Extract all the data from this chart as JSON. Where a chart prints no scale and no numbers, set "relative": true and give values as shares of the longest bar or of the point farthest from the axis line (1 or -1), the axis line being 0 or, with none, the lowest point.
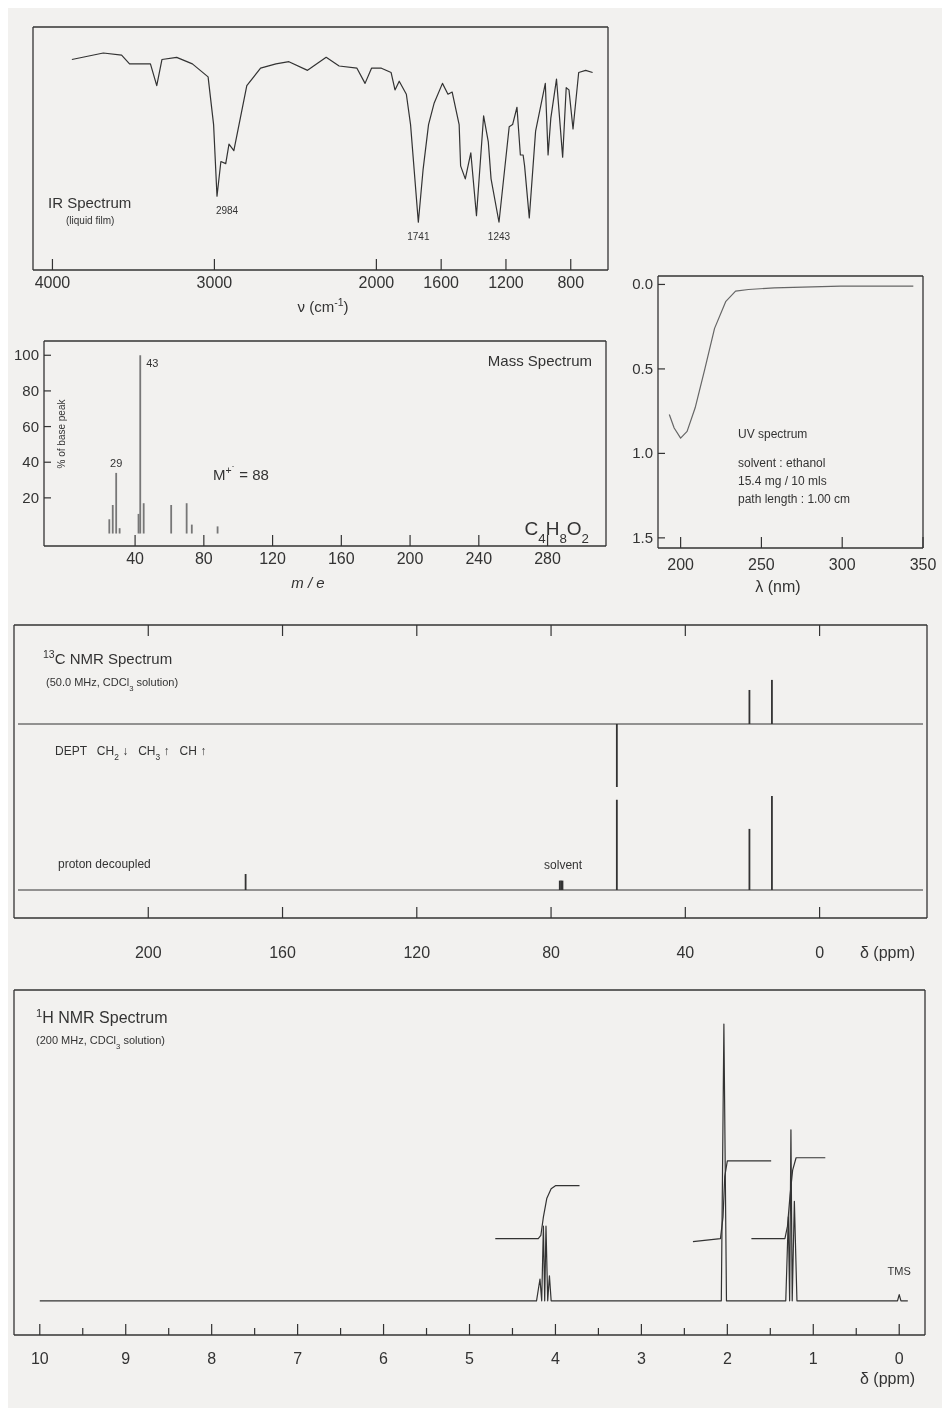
{
  "chart_data": [
    {
      "type": "line",
      "title": "IR Spectrum",
      "subtitle": "(liquid film)",
      "xlabel": "ν (cm$^{-1}$)",
      "relative": true,
      "xlim": [
        4120,
        570
      ],
      "xticks": [
        4000,
        3000,
        2000,
        1600,
        1200,
        800
      ],
      "x": [
        3880,
        3686,
        3573,
        3524,
        3460,
        3395,
        3356,
        3324,
        3233,
        3136,
        3039,
        3005,
        2984,
        2960,
        2930,
        2910,
        2880,
        2800,
        2715,
        2620,
        2540,
        2425,
        2310,
        2230,
        2120,
        2070,
        2030,
        1969,
        1909,
        1885,
        1859,
        1815,
        1789,
        1741,
        1712,
        1678,
        1643,
        1592,
        1558,
        1532,
        1489,
        1480,
        1451,
        1417,
        1382,
        1338,
        1309,
        1292,
        1243,
        1180,
        1159,
        1132,
        1111,
        1094,
        1085,
        1056,
        1017,
        957,
        940,
        923,
        888,
        850,
        828,
        811,
        786,
        751,
        708,
        665
      ],
      "series": [
        {
          "color": "#333333",
          "values": [
            0.97,
            1.0,
            0.99,
            0.95,
            0.95,
            0.95,
            0.85,
            0.97,
            0.98,
            0.95,
            0.89,
            0.67,
            0.34,
            0.5,
            0.49,
            0.58,
            0.55,
            0.85,
            0.93,
            0.95,
            0.96,
            0.92,
            0.98,
            0.94,
            0.93,
            0.86,
            0.93,
            0.93,
            0.91,
            0.83,
            0.87,
            0.81,
            0.67,
            0.22,
            0.46,
            0.67,
            0.77,
            0.86,
            0.81,
            0.82,
            0.67,
            0.48,
            0.42,
            0.54,
            0.25,
            0.71,
            0.59,
            0.42,
            0.22,
            0.66,
            0.67,
            0.75,
            0.53,
            0.53,
            0.48,
            0.24,
            0.64,
            0.86,
            0.53,
            0.7,
            0.88,
            0.52,
            0.84,
            0.83,
            0.65,
            0.91,
            0.92,
            0.91
          ]
        }
      ],
      "annotations": [
        {
          "text": "2984",
          "x": 2984,
          "y": 0.34
        },
        {
          "text": "1741",
          "x": 1741,
          "y": 0.22
        },
        {
          "text": "1243",
          "x": 1243,
          "y": 0.22
        }
      ]
    },
    {
      "type": "bar",
      "title": "Mass Spectrum",
      "xlabel": "m / e",
      "ylabel": "% of base peak",
      "xlim": [
        -13,
        314
      ],
      "ylim": [
        -7,
        108
      ],
      "xticks": [
        40,
        80,
        120,
        160,
        200,
        240,
        280
      ],
      "yticks": [
        20,
        40,
        60,
        80,
        100
      ],
      "x": [
        25,
        27,
        29,
        31,
        42,
        43,
        45,
        61,
        70,
        73,
        88
      ],
      "series": [
        {
          "color": "#777777",
          "values": [
            8,
            16,
            34,
            3,
            11,
            100,
            17,
            16,
            17,
            5,
            4
          ]
        }
      ],
      "annotations": [
        {
          "text": "43",
          "x": 43,
          "y": 100
        },
        {
          "text": "29",
          "x": 29,
          "y": 34
        },
        "M$^{+˙}$ = 88",
        "C$_{4}$H$_{8}$O$_{2}$"
      ]
    },
    {
      "type": "line",
      "title": "UV spectrum",
      "xlabel": "λ (nm)",
      "xlim": [
        186,
        350
      ],
      "ylim": [
        1.56,
        -0.05
      ],
      "xticks": [
        200,
        250,
        300,
        350
      ],
      "yticks": [
        {
          "value": 0,
          "label": "0.0"
        },
        0.5,
        {
          "value": 1,
          "label": "1.0"
        },
        1.5
      ],
      "x": [
        193,
        196,
        200,
        204,
        209,
        215,
        221,
        228,
        234,
        242,
        258,
        299,
        344
      ],
      "series": [
        {
          "color": "#666666",
          "values": [
            0.77,
            0.85,
            0.91,
            0.87,
            0.73,
            0.5,
            0.26,
            0.1,
            0.04,
            0.03,
            0.02,
            0.01,
            0.01
          ]
        }
      ],
      "annotations": [
        "solvent : ethanol",
        "15.4 mg / 10 mls",
        "path length : 1.00 cm"
      ]
    },
    {
      "type": "bar",
      "title": "$^{13}$C NMR Spectrum",
      "subtitle": "(50.0 MHz, CDCl$_{3}$ solution)",
      "relative": true,
      "tick_labels": false,
      "xlim": [
        240,
        -32
      ],
      "xticks": [
        200,
        160,
        120,
        80,
        40,
        0
      ],
      "x": [
        60.4,
        20.9,
        14.2
      ],
      "series": [
        {
          "color": "#333333",
          "values": [
            -1,
            0.54,
            0.7
          ]
        }
      ],
      "annotations": [
        "DEPT   CH$_{2}$ ↓   CH$_{3}$ ↑   CH ↑"
      ]
    },
    {
      "type": "bar",
      "xlabel": "δ (ppm)",
      "relative": true,
      "xlim": [
        240,
        -32
      ],
      "xticks": [
        200,
        160,
        120,
        80,
        40,
        0
      ],
      "x": [
        171.0,
        77.4,
        77.0,
        76.6,
        60.4,
        20.9,
        14.2
      ],
      "series": [
        {
          "color": "#333333",
          "values": [
            0.17,
            0.1,
            0.1,
            0.1,
            0.96,
            0.65,
            1.0
          ]
        }
      ],
      "annotations": [
        "proton decoupled",
        {
          "text": "solvent",
          "x": 77,
          "y": 0.1
        }
      ]
    },
    {
      "type": "line",
      "title": "$^{1}$H NMR Spectrum",
      "subtitle": "(200 MHz, CDCl$_{3}$ solution)",
      "xlabel": "δ (ppm)",
      "relative": true,
      "xlim": [
        10.3,
        -0.3
      ],
      "xticks": [
        10,
        {
          "value": 9.5,
          "label": null
        },
        9,
        {
          "value": 8.5,
          "label": null
        },
        8,
        {
          "value": 7.5,
          "label": null
        },
        7,
        {
          "value": 6.5,
          "label": null
        },
        6,
        {
          "value": 5.5,
          "label": null
        },
        5,
        {
          "value": 4.5,
          "label": null
        },
        4,
        {
          "value": 3.5,
          "label": null
        },
        3,
        {
          "value": 2.5,
          "label": null
        },
        2,
        {
          "value": 1.5,
          "label": null
        },
        1,
        {
          "value": 0.5,
          "label": null
        },
        0
      ],
      "series": [
        {
          "color": "#333333",
          "x": [
            10,
            4.22,
            4.18,
            4.16,
            4.14,
            4.125,
            4.11,
            4.09,
            4.07,
            4.05,
            2.07,
            2.04,
            2.01,
            1.32,
            1.29,
            1.275,
            1.26,
            1.245,
            1.22,
            1.19,
            0.02,
            0,
            -0.02,
            -0.1
          ],
          "values": [
            0.11,
            0.11,
            0.18,
            0.11,
            0.35,
            0.11,
            0.35,
            0.11,
            0.19,
            0.11,
            0.11,
            1,
            0.11,
            0.11,
            0.38,
            0.11,
            0.66,
            0.11,
            0.43,
            0.11,
            0.11,
            0.13,
            0.11,
            0.11
          ]
        },
        {
          "color": "#333333",
          "x": [
            4.7,
            4.2,
            4.17,
            4.14,
            4.1,
            4.05,
            4.0,
            3.72
          ],
          "values": [
            0.31,
            0.31,
            0.32,
            0.38,
            0.44,
            0.47,
            0.48,
            0.48
          ]
        },
        {
          "color": "#333333",
          "x": [
            2.4,
            2.08,
            2.05,
            2.03,
            2.0,
            1.49
          ],
          "values": [
            0.3,
            0.31,
            0.38,
            0.51,
            0.56,
            0.56
          ]
        },
        {
          "color": "#333333",
          "x": [
            1.72,
            1.33,
            1.3,
            1.27,
            1.24,
            1.2,
            0.86
          ],
          "values": [
            0.31,
            0.31,
            0.35,
            0.45,
            0.53,
            0.57,
            0.57
          ]
        }
      ],
      "annotations": [
        {
          "text": "TMS",
          "x": 0,
          "y": 0.13
        }
      ]
    }
  ]
}
